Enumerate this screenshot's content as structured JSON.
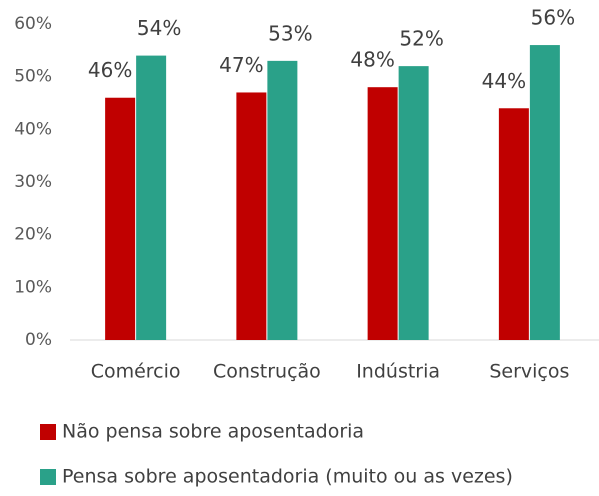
{
  "chart_data": {
    "type": "bar",
    "categories": [
      "Comércio",
      "Construção",
      "Indústria",
      "Serviços"
    ],
    "series": [
      {
        "name": "Não pensa sobre aposentadoria",
        "color": "#c00000",
        "values": [
          46,
          47,
          48,
          44
        ],
        "value_labels": [
          "46%",
          "47%",
          "48%",
          "44%"
        ]
      },
      {
        "name": "Pensa sobre aposentadoria (muito ou as vezes)",
        "color": "#2aa189",
        "values": [
          54,
          53,
          52,
          56
        ],
        "value_labels": [
          "54%",
          "53%",
          "52%",
          "56%"
        ]
      }
    ],
    "ylim": [
      0,
      60
    ],
    "yticks": [
      {
        "value": 0,
        "label": "0%"
      },
      {
        "value": 10,
        "label": "10%"
      },
      {
        "value": 20,
        "label": "20%"
      },
      {
        "value": 30,
        "label": "30%"
      },
      {
        "value": 40,
        "label": "40%"
      },
      {
        "value": 50,
        "label": "50%"
      },
      {
        "value": 60,
        "label": "60%"
      }
    ],
    "grid": false,
    "legend": "bottom"
  }
}
